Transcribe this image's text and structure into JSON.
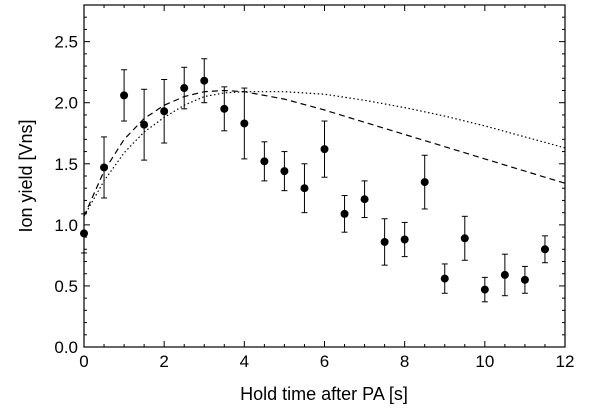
{
  "chart_data": {
    "type": "scatter",
    "xlabel": "Hold time after PA [s]",
    "ylabel": "Ion yield [Vns]",
    "xlim": [
      0,
      12
    ],
    "ylim": [
      0,
      2.8
    ],
    "xticks": [
      0,
      2,
      4,
      6,
      8,
      10,
      12
    ],
    "yticks": [
      0.0,
      0.5,
      1.0,
      1.5,
      2.0,
      2.5
    ],
    "ytick_labels": [
      "0.0",
      "0.5",
      "1.0",
      "1.5",
      "2.0",
      "2.5"
    ],
    "xtick_labels": [
      "0",
      "2",
      "4",
      "6",
      "8",
      "10",
      "12"
    ],
    "grid": false,
    "series": [
      {
        "style": "points-with-errorbars",
        "color": "#000000",
        "points": [
          {
            "x": 0.0,
            "y": 0.93,
            "err": 0.16
          },
          {
            "x": 0.5,
            "y": 1.47,
            "err": 0.25
          },
          {
            "x": 1.0,
            "y": 2.06,
            "err": 0.21
          },
          {
            "x": 1.5,
            "y": 1.82,
            "err": 0.29
          },
          {
            "x": 2.0,
            "y": 1.93,
            "err": 0.26
          },
          {
            "x": 2.5,
            "y": 2.12,
            "err": 0.17
          },
          {
            "x": 3.0,
            "y": 2.18,
            "err": 0.18
          },
          {
            "x": 3.5,
            "y": 1.95,
            "err": 0.18
          },
          {
            "x": 4.0,
            "y": 1.83,
            "err": 0.29
          },
          {
            "x": 4.5,
            "y": 1.52,
            "err": 0.16
          },
          {
            "x": 5.0,
            "y": 1.44,
            "err": 0.16
          },
          {
            "x": 5.5,
            "y": 1.3,
            "err": 0.2
          },
          {
            "x": 6.0,
            "y": 1.62,
            "err": 0.23
          },
          {
            "x": 6.5,
            "y": 1.09,
            "err": 0.15
          },
          {
            "x": 7.0,
            "y": 1.21,
            "err": 0.15
          },
          {
            "x": 7.5,
            "y": 0.86,
            "err": 0.19
          },
          {
            "x": 8.0,
            "y": 0.88,
            "err": 0.14
          },
          {
            "x": 8.5,
            "y": 1.35,
            "err": 0.22
          },
          {
            "x": 9.0,
            "y": 0.56,
            "err": 0.12
          },
          {
            "x": 9.5,
            "y": 0.89,
            "err": 0.18
          },
          {
            "x": 10.0,
            "y": 0.47,
            "err": 0.1
          },
          {
            "x": 10.5,
            "y": 0.59,
            "err": 0.17
          },
          {
            "x": 11.0,
            "y": 0.55,
            "err": 0.11
          },
          {
            "x": 11.5,
            "y": 0.8,
            "err": 0.11
          }
        ]
      },
      {
        "style": "dashed-curve",
        "color": "#000000",
        "points": [
          [
            0,
            1.07
          ],
          [
            0.5,
            1.44
          ],
          [
            1,
            1.7
          ],
          [
            1.5,
            1.87
          ],
          [
            2,
            1.98
          ],
          [
            2.5,
            2.05
          ],
          [
            3,
            2.09
          ],
          [
            3.5,
            2.1
          ],
          [
            4,
            2.09
          ],
          [
            5,
            2.03
          ],
          [
            6,
            1.94
          ],
          [
            7,
            1.84
          ],
          [
            8,
            1.74
          ],
          [
            9,
            1.64
          ],
          [
            10,
            1.54
          ],
          [
            11,
            1.44
          ],
          [
            12,
            1.34
          ]
        ]
      },
      {
        "style": "dotted-curve",
        "color": "#000000",
        "points": [
          [
            0,
            1.07
          ],
          [
            0.5,
            1.36
          ],
          [
            1,
            1.59
          ],
          [
            1.5,
            1.76
          ],
          [
            2,
            1.88
          ],
          [
            2.5,
            1.98
          ],
          [
            3,
            2.05
          ],
          [
            3.5,
            2.08
          ],
          [
            4,
            2.09
          ],
          [
            5,
            2.09
          ],
          [
            6,
            2.07
          ],
          [
            7,
            2.02
          ],
          [
            8,
            1.96
          ],
          [
            9,
            1.89
          ],
          [
            10,
            1.81
          ],
          [
            11,
            1.72
          ],
          [
            12,
            1.63
          ]
        ]
      }
    ]
  }
}
